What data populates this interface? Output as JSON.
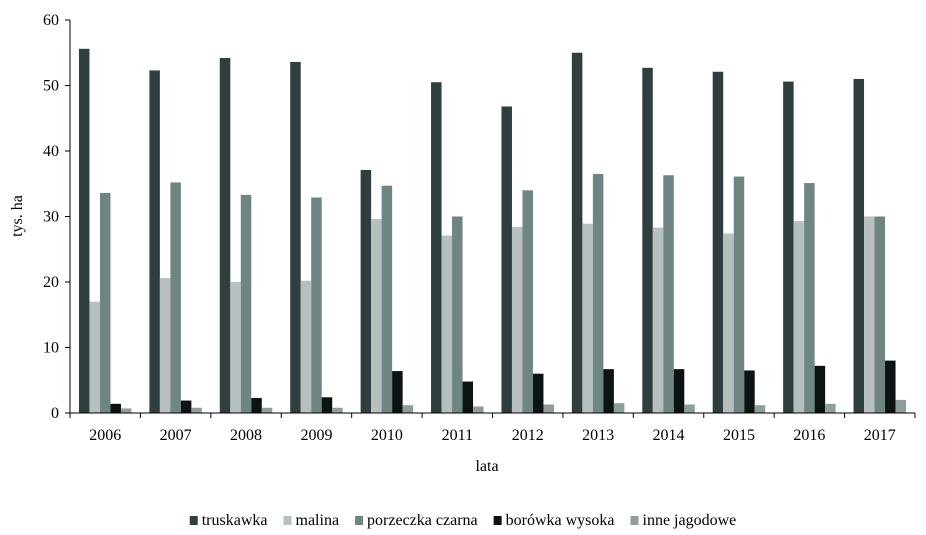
{
  "chart_data": {
    "type": "bar",
    "xlabel": "lata",
    "ylabel": "tys. ha",
    "ylim": [
      0,
      60
    ],
    "yticks": [
      0,
      10,
      20,
      30,
      40,
      50,
      60
    ],
    "grid": false,
    "legend_position": "bottom",
    "categories": [
      "2006",
      "2007",
      "2008",
      "2009",
      "2010",
      "2011",
      "2012",
      "2013",
      "2014",
      "2015",
      "2016",
      "2017"
    ],
    "series": [
      {
        "name": "truskawka",
        "color": "#2f3f40",
        "values": [
          55.6,
          52.3,
          54.2,
          53.6,
          37.1,
          50.5,
          46.8,
          55.0,
          52.7,
          52.1,
          50.6,
          51.0
        ]
      },
      {
        "name": "malina",
        "color": "#b6c0bd",
        "values": [
          17.0,
          20.6,
          20.0,
          20.2,
          29.6,
          27.1,
          28.4,
          28.9,
          28.3,
          27.4,
          29.3,
          30.0
        ]
      },
      {
        "name": "porzeczka czarna",
        "color": "#6f8584",
        "values": [
          33.6,
          35.2,
          33.3,
          32.9,
          34.7,
          30.0,
          34.0,
          36.5,
          36.3,
          36.1,
          35.1,
          30.0
        ]
      },
      {
        "name": "borówka wysoka",
        "color": "#0b1412",
        "values": [
          1.4,
          1.9,
          2.3,
          2.4,
          6.4,
          4.8,
          6.0,
          6.7,
          6.7,
          6.5,
          7.2,
          8.0
        ]
      },
      {
        "name": "inne jagodowe",
        "color": "#8e9e9d",
        "values": [
          0.7,
          0.8,
          0.8,
          0.8,
          1.2,
          1.0,
          1.3,
          1.5,
          1.3,
          1.2,
          1.4,
          2.0
        ]
      }
    ]
  }
}
